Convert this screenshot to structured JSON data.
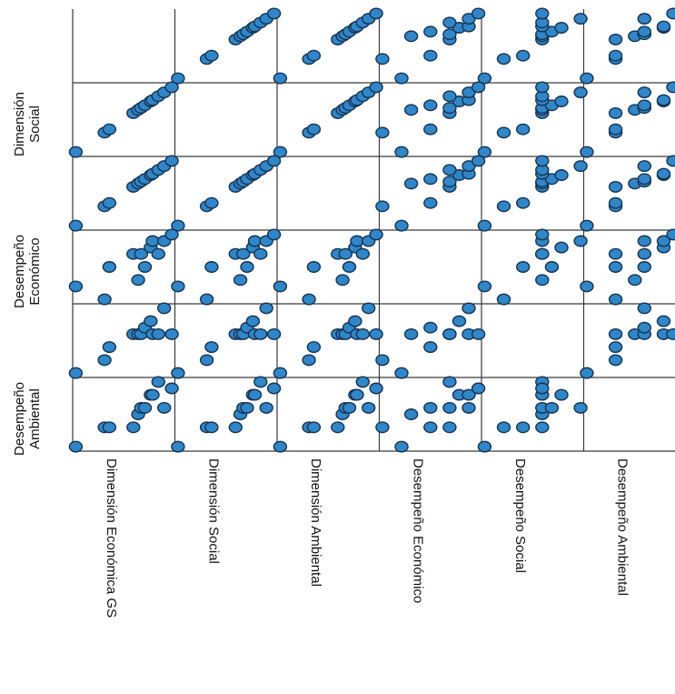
{
  "chart_data": {
    "type": "scatter",
    "title": "",
    "variables": [
      "Dimensión Económica GS",
      "Dimensión Social",
      "Dimensión Ambiental",
      "Desempeño Económico",
      "Desempeño Social",
      "Desempeño Ambiental"
    ],
    "row_labels": [
      {
        "lines": [
          ""
        ]
      },
      {
        "lines": [
          "Dimensión",
          "Social"
        ]
      },
      {
        "lines": [
          ""
        ]
      },
      {
        "lines": [
          "Desempeño",
          "Económico"
        ]
      },
      {
        "lines": [
          ""
        ]
      },
      {
        "lines": [
          "Desempeño",
          "Ambiental"
        ]
      }
    ],
    "observations": [
      {
        "dimension_economica_gs": 0.0,
        "dimension_social": 0.0,
        "dimension_ambiental": 0.0,
        "desempeno_economico": 0.2,
        "desempeno_social": 0.0,
        "desempeno_ambiental": 0.0
      },
      {
        "dimension_economica_gs": 0.3,
        "dimension_social": 0.3,
        "dimension_ambiental": 0.3,
        "desempeno_economico": 0.0,
        "desempeno_social": 0.2,
        "desempeno_ambiental": 0.3
      },
      {
        "dimension_economica_gs": 0.35,
        "dimension_social": 0.35,
        "dimension_ambiental": 0.35,
        "desempeno_economico": 0.5,
        "desempeno_social": 0.4,
        "desempeno_ambiental": 0.3
      },
      {
        "dimension_economica_gs": 0.6,
        "dimension_social": 0.6,
        "dimension_ambiental": 0.6,
        "desempeno_economico": 0.7,
        "desempeno_social": 0.6,
        "desempeno_ambiental": 0.3
      },
      {
        "dimension_economica_gs": 0.65,
        "dimension_social": 0.65,
        "dimension_ambiental": 0.65,
        "desempeno_economico": 0.3,
        "desempeno_social": 0.6,
        "desempeno_ambiental": 0.5
      },
      {
        "dimension_economica_gs": 0.68,
        "dimension_social": 0.68,
        "dimension_ambiental": 0.68,
        "desempeno_economico": 0.7,
        "desempeno_social": 0.6,
        "desempeno_ambiental": 0.6
      },
      {
        "dimension_economica_gs": 0.72,
        "dimension_social": 0.72,
        "dimension_ambiental": 0.72,
        "desempeno_economico": 0.5,
        "desempeno_social": 0.7,
        "desempeno_ambiental": 0.6
      },
      {
        "dimension_economica_gs": 0.78,
        "dimension_social": 0.78,
        "dimension_ambiental": 0.78,
        "desempeno_economico": 0.8,
        "desempeno_social": 0.8,
        "desempeno_ambiental": 0.8
      },
      {
        "dimension_economica_gs": 0.8,
        "dimension_social": 0.8,
        "dimension_ambiental": 0.8,
        "desempeno_economico": 0.9,
        "desempeno_social": 0.6,
        "desempeno_ambiental": 0.8
      },
      {
        "dimension_economica_gs": 0.86,
        "dimension_social": 0.86,
        "dimension_ambiental": 0.86,
        "desempeno_economico": 0.7,
        "desempeno_social": 0.6,
        "desempeno_ambiental": 1.0
      },
      {
        "dimension_economica_gs": 0.92,
        "dimension_social": 0.92,
        "dimension_ambiental": 0.92,
        "desempeno_economico": 0.9,
        "desempeno_social": 1.0,
        "desempeno_ambiental": 0.6
      },
      {
        "dimension_economica_gs": 1.0,
        "dimension_social": 1.0,
        "dimension_ambiental": 1.0,
        "desempeno_economico": 1.0,
        "desempeno_social": 0.6,
        "desempeno_ambiental": 0.9
      }
    ],
    "variable_keys": [
      "dimension_economica_gs",
      "dimension_social",
      "dimension_ambiental",
      "desempeno_economico",
      "desempeno_social",
      "desempeno_ambiental"
    ],
    "diagonal": "empty",
    "grid": false,
    "legend": "none",
    "colors": {
      "marker_fill": "#2f86c9",
      "marker_stroke": "#16324f",
      "frame": "#3a3a3a"
    }
  }
}
